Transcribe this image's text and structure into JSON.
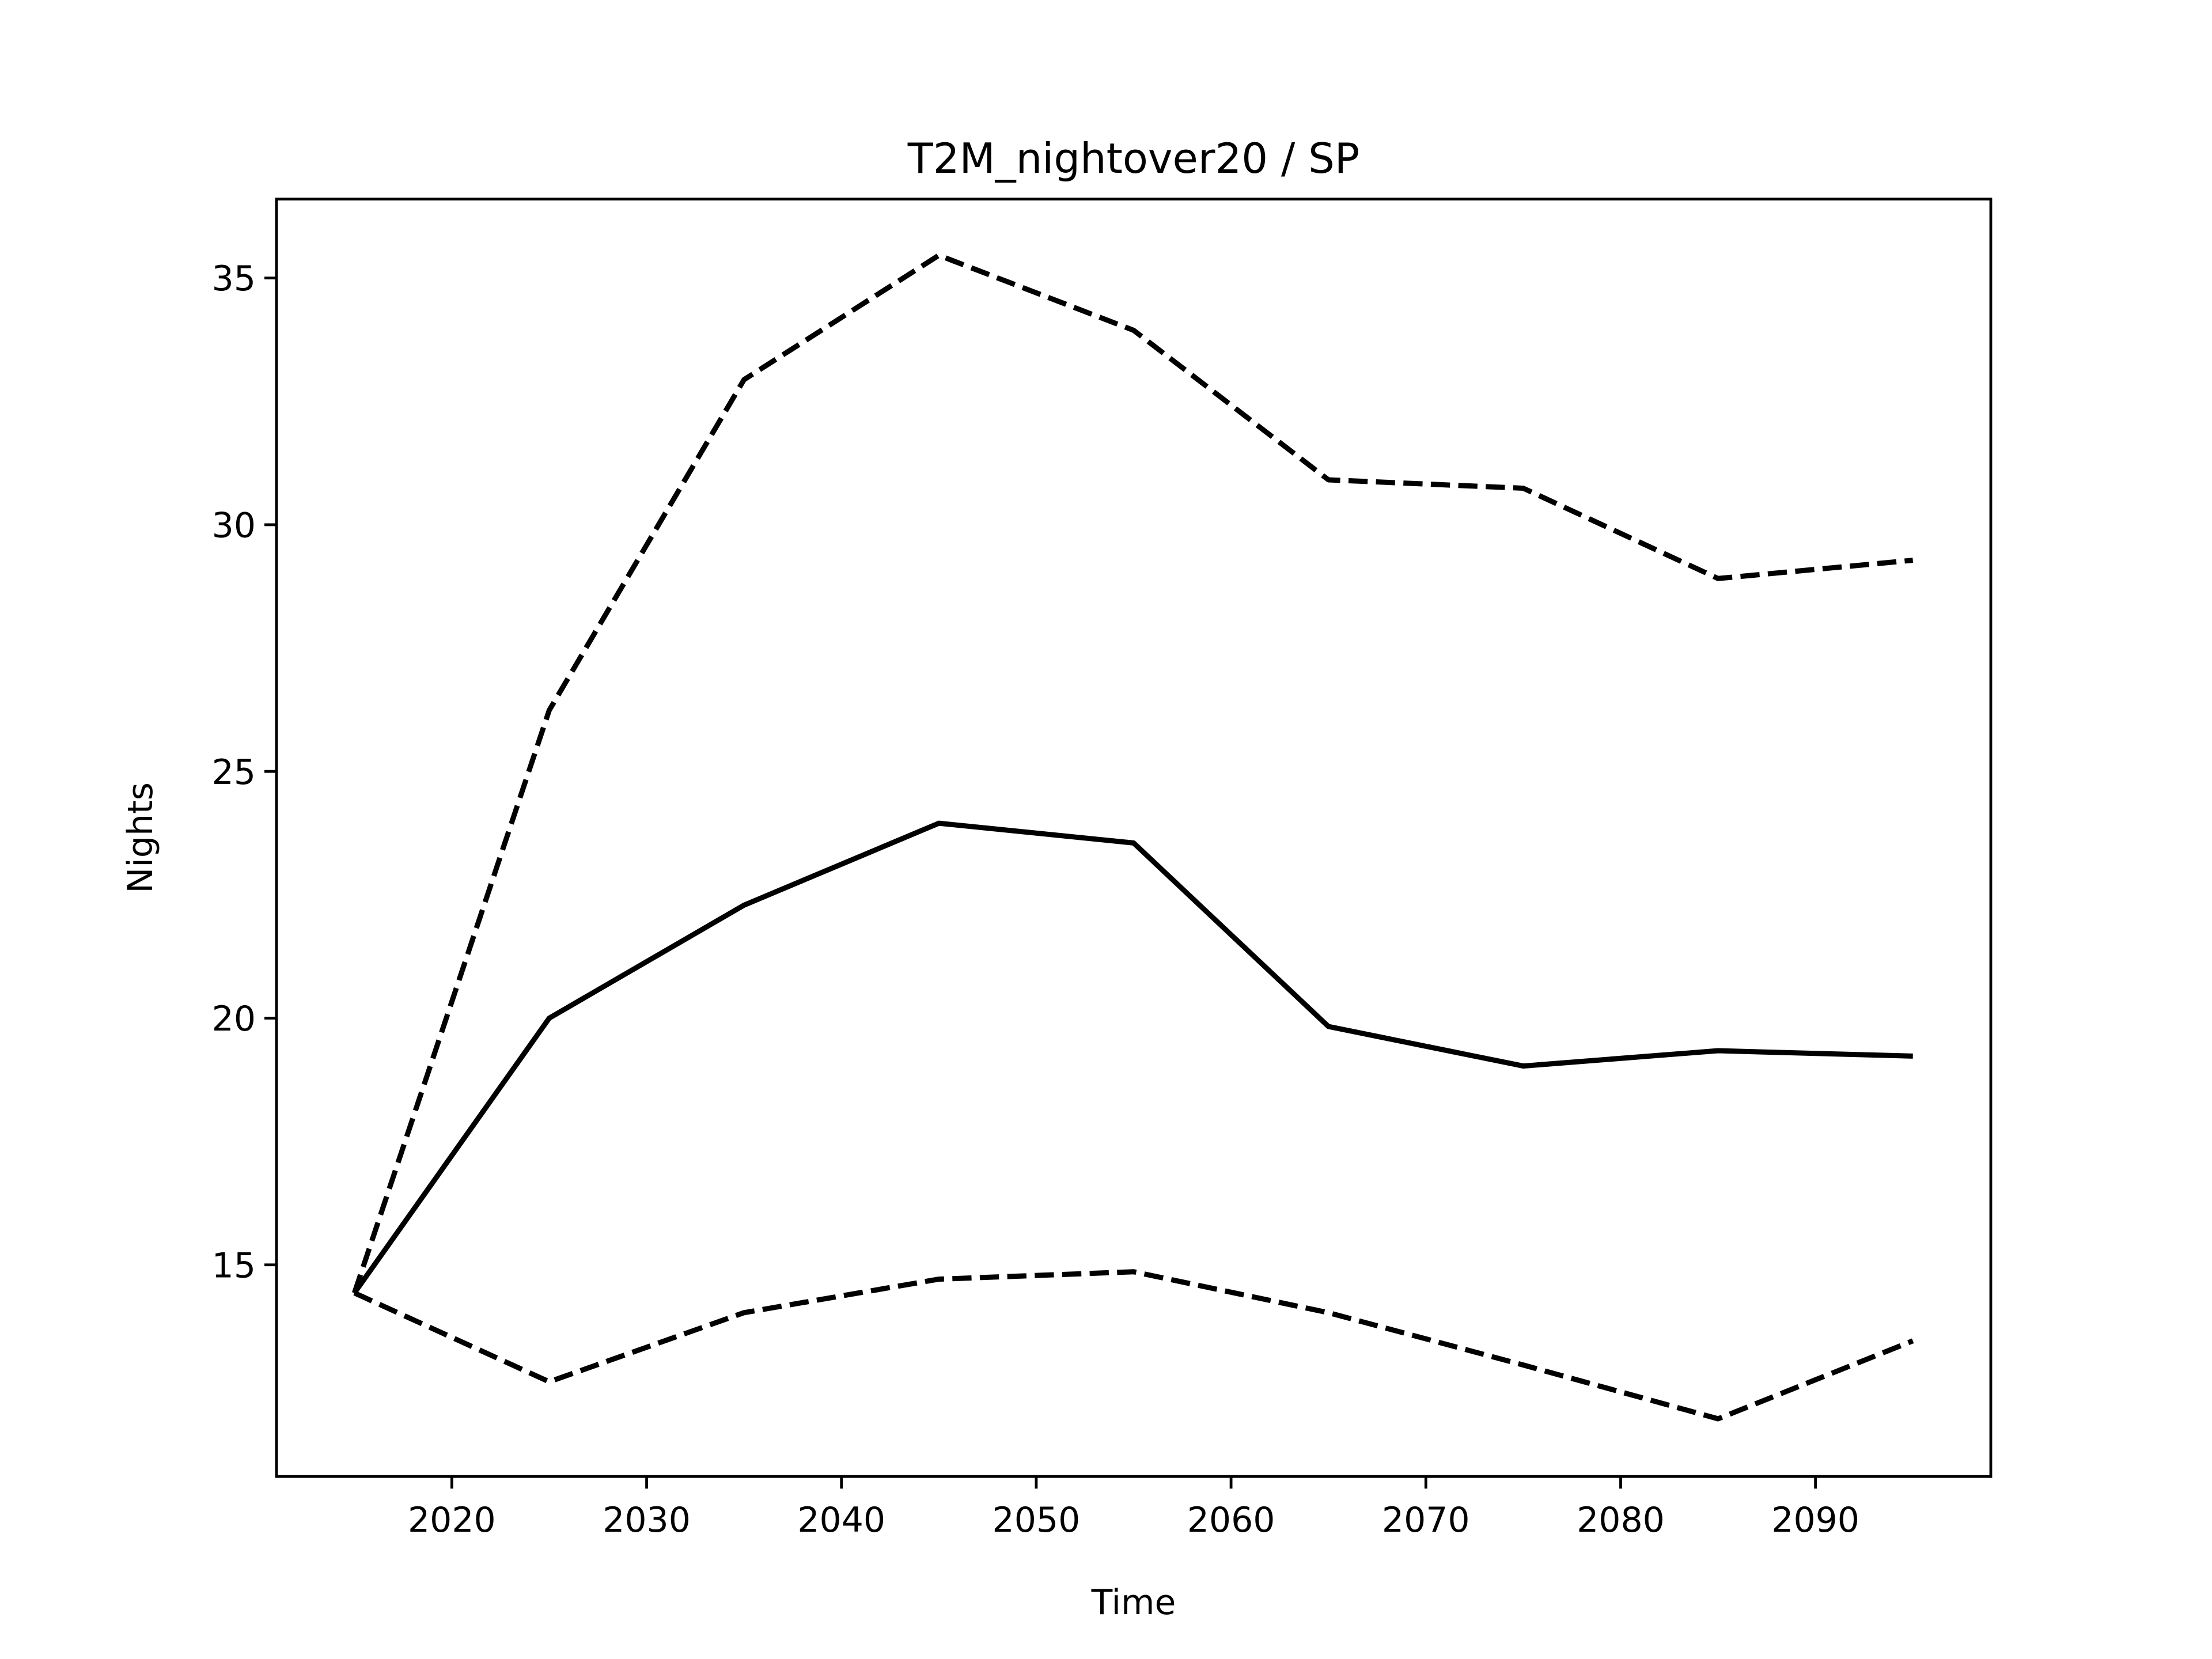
{
  "chart_data": {
    "type": "line",
    "title": "T2M_nightover20 / SP",
    "xlabel": "Time",
    "ylabel": "Nights",
    "x": [
      2015,
      2025,
      2035,
      2045,
      2055,
      2065,
      2075,
      2085,
      2095
    ],
    "series": [
      {
        "color": "#000000",
        "linestyle": "solid",
        "values": [
          14.43,
          20.0,
          22.29,
          23.95,
          23.55,
          19.83,
          19.03,
          19.34,
          19.23
        ]
      },
      {
        "color": "#000000",
        "linestyle": "dashed",
        "values": [
          14.43,
          26.24,
          32.94,
          35.46,
          33.94,
          30.91,
          30.74,
          28.91,
          29.28
        ]
      },
      {
        "color": "#000000",
        "linestyle": "dashed",
        "values": [
          14.43,
          12.63,
          14.03,
          14.71,
          14.86,
          14.03,
          12.97,
          11.88,
          13.46
        ]
      }
    ],
    "xlim": [
      2011,
      2099
    ],
    "xticks": [
      2020,
      2030,
      2040,
      2050,
      2060,
      2070,
      2080,
      2090
    ],
    "ylim": [
      10.71,
      36.6
    ],
    "yticks": [
      15,
      20,
      25,
      30,
      35
    ],
    "grid": false
  }
}
